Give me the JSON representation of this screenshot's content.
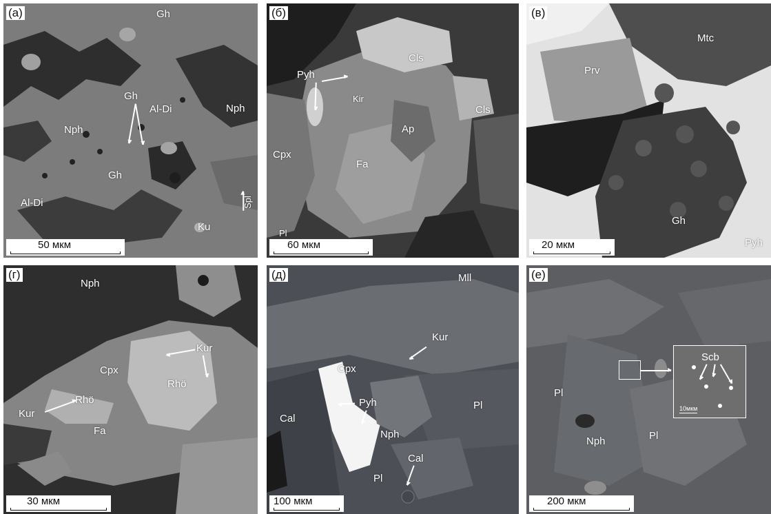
{
  "panels": {
    "a": {
      "tag": "(а)",
      "scale": "50 мкм",
      "minerals": [
        "Gh",
        "Gh",
        "Al-Di",
        "Nph",
        "Nph",
        "Gh",
        "Al-Di",
        "Ku",
        "Spl"
      ]
    },
    "b": {
      "tag": "(б)",
      "scale": "60 мкм",
      "minerals": [
        "Cls",
        "Pyh",
        "Kir",
        "Cls",
        "Ap",
        "Cpx",
        "Fa",
        "Pl"
      ]
    },
    "v": {
      "tag": "(в)",
      "scale": "20 мкм",
      "minerals": [
        "Mtc",
        "Prv",
        "Gh",
        "Pyh"
      ]
    },
    "g": {
      "tag": "(г)",
      "scale": "30 мкм",
      "minerals": [
        "Nph",
        "Kur",
        "Cpx",
        "Rhö",
        "Rhö",
        "Kur",
        "Fa"
      ]
    },
    "d": {
      "tag": "(д)",
      "scale": "100 мкм",
      "minerals": [
        "Mll",
        "Kur",
        "Cpx",
        "Pyh",
        "Pl",
        "Cal",
        "Nph",
        "Cal",
        "Pl"
      ]
    },
    "e": {
      "tag": "(е)",
      "scale": "200 мкм",
      "minerals": [
        "Pl",
        "Nph",
        "Pl"
      ],
      "inset": {
        "label": "Scb",
        "scale": "10мкм"
      }
    }
  }
}
